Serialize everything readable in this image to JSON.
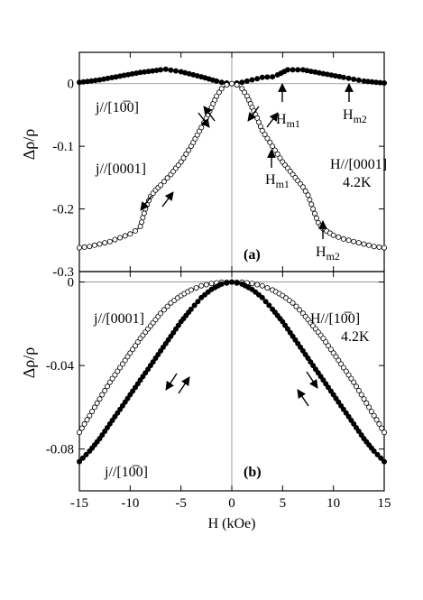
{
  "chart_data": [
    {
      "panel_label": "(a)",
      "type": "scatter",
      "xlim": [
        -15,
        15
      ],
      "ylim": [
        -0.3,
        0.05
      ],
      "x_ticks": [
        -15,
        -10,
        -5,
        0,
        5,
        10,
        15
      ],
      "y_ticks": [
        0,
        -0.1,
        -0.2,
        -0.3
      ],
      "y_tick_labels": [
        "0",
        "-0.1",
        "-0.2",
        "-0.3"
      ],
      "ylabel": "Δρ/ρ",
      "annotations": [
        "H//[0001]",
        "4.2K"
      ],
      "series": [
        {
          "name": "j//[10̅0]",
          "marker": "filled",
          "x": [
            -15,
            -13,
            -11,
            -9,
            -7,
            -6.5,
            -5,
            -3,
            -1.5,
            -1,
            0,
            1,
            1.5,
            3,
            4,
            4.5,
            5.5,
            7,
            9,
            11,
            12,
            13,
            15
          ],
          "y": [
            0.002,
            0.006,
            0.012,
            0.018,
            0.022,
            0.023,
            0.019,
            0.011,
            0.004,
            0.002,
            0,
            0.002,
            0.004,
            0.01,
            0.011,
            0.014,
            0.022,
            0.022,
            0.016,
            0.01,
            0.007,
            0.004,
            0.001
          ]
        },
        {
          "name": "j//[0001]",
          "marker": "open",
          "x": [
            -15,
            -14,
            -13,
            -12,
            -11,
            -10,
            -9.5,
            -9,
            -8.5,
            -8,
            -7.5,
            -7,
            -6,
            -5,
            -4,
            -3,
            -2.5,
            -2,
            -1.5,
            -1,
            -0.5,
            0,
            0.5,
            1,
            1.5,
            2,
            2.5,
            3,
            4,
            5,
            6,
            7,
            7.5,
            8,
            8.5,
            9,
            10,
            11,
            12,
            13,
            14,
            15
          ],
          "y": [
            -0.262,
            -0.26,
            -0.256,
            -0.252,
            -0.246,
            -0.24,
            -0.235,
            -0.228,
            -0.2,
            -0.18,
            -0.17,
            -0.162,
            -0.145,
            -0.125,
            -0.1,
            -0.07,
            -0.055,
            -0.038,
            -0.02,
            -0.008,
            -0.002,
            0,
            -0.002,
            -0.008,
            -0.02,
            -0.038,
            -0.055,
            -0.075,
            -0.1,
            -0.125,
            -0.145,
            -0.165,
            -0.178,
            -0.2,
            -0.222,
            -0.232,
            -0.242,
            -0.248,
            -0.252,
            -0.256,
            -0.26,
            -0.262
          ]
        }
      ],
      "labels": [
        {
          "text": "H",
          "sub": "m1"
        },
        {
          "text": "H",
          "sub": "m2"
        },
        {
          "text": "H",
          "sub": "m1"
        },
        {
          "text": "H",
          "sub": "m2"
        }
      ]
    },
    {
      "panel_label": "(b)",
      "type": "scatter",
      "xlim": [
        -15,
        15
      ],
      "ylim": [
        -0.1,
        0.005
      ],
      "x_ticks": [
        -15,
        -10,
        -5,
        0,
        5,
        10,
        15
      ],
      "x_tick_labels": [
        "-15",
        "-10",
        "-5",
        "0",
        "5",
        "10",
        "15"
      ],
      "y_ticks": [
        0,
        -0.04,
        -0.08
      ],
      "y_tick_labels": [
        "0",
        "-0.04",
        "-0.08"
      ],
      "ylabel": "Δρ/ρ",
      "xlabel": "H (kOe)",
      "annotations": [
        "H//[10̅0]",
        "4.2K"
      ],
      "series": [
        {
          "name": "j//[0001]",
          "marker": "open",
          "x": [
            -15,
            -14,
            -13,
            -12,
            -11,
            -10,
            -9,
            -8,
            -7,
            -6,
            -5,
            -4,
            -3,
            -2,
            -1,
            0,
            1,
            2,
            3,
            4,
            5,
            6,
            7,
            8,
            9,
            10,
            11,
            12,
            13,
            14,
            15
          ],
          "y": [
            -0.072,
            -0.064,
            -0.056,
            -0.048,
            -0.041,
            -0.034,
            -0.027,
            -0.021,
            -0.015,
            -0.01,
            -0.0065,
            -0.0038,
            -0.0018,
            -0.0007,
            -0.0001,
            0,
            -0.0001,
            -0.0007,
            -0.0018,
            -0.0038,
            -0.0065,
            -0.01,
            -0.015,
            -0.021,
            -0.027,
            -0.034,
            -0.041,
            -0.048,
            -0.056,
            -0.064,
            -0.072
          ]
        },
        {
          "name": "j//[10̅0]",
          "marker": "filled",
          "x": [
            -15,
            -14,
            -13,
            -12,
            -11,
            -10,
            -9,
            -8,
            -7,
            -6,
            -5,
            -4,
            -3,
            -2,
            -1,
            0,
            1,
            2,
            3,
            4,
            5,
            6,
            7,
            8,
            9,
            10,
            11,
            12,
            13,
            14,
            15
          ],
          "y": [
            -0.086,
            -0.081,
            -0.075,
            -0.068,
            -0.061,
            -0.054,
            -0.047,
            -0.04,
            -0.033,
            -0.026,
            -0.019,
            -0.013,
            -0.0075,
            -0.0035,
            -0.001,
            0,
            -0.001,
            -0.0035,
            -0.0075,
            -0.013,
            -0.019,
            -0.026,
            -0.033,
            -0.04,
            -0.047,
            -0.054,
            -0.061,
            -0.068,
            -0.075,
            -0.081,
            -0.086
          ]
        }
      ]
    }
  ]
}
